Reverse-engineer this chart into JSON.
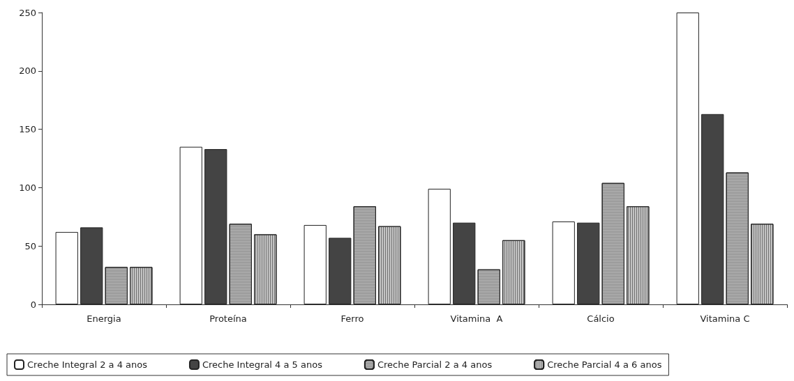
{
  "chart_data": {
    "type": "bar",
    "categories": [
      "Energia",
      "Proteína",
      "Ferro",
      "Vitamina  A",
      "Cálcio",
      "Vitamina C"
    ],
    "series": [
      {
        "name": "Creche Integral 2 a 4 anos",
        "color": "#ffffff",
        "values": [
          62,
          135,
          68,
          99,
          71,
          250
        ]
      },
      {
        "name": "Creche Integral 4 a 5 anos",
        "color": "#444444",
        "values": [
          66,
          133,
          57,
          70,
          70,
          163
        ]
      },
      {
        "name": "Creche Parcial 2 a 4 anos",
        "color": "#a8a8a8",
        "values": [
          32,
          69,
          84,
          30,
          104,
          113
        ]
      },
      {
        "name": "Creche Parcial 4 a 6 anos",
        "color": "#c4c4c4",
        "values": [
          32,
          60,
          67,
          55,
          84,
          69
        ]
      }
    ],
    "ylim": [
      0,
      250
    ],
    "yticks": [
      0,
      50,
      100,
      150,
      200,
      250
    ],
    "grid": false,
    "legend": "bottom"
  }
}
